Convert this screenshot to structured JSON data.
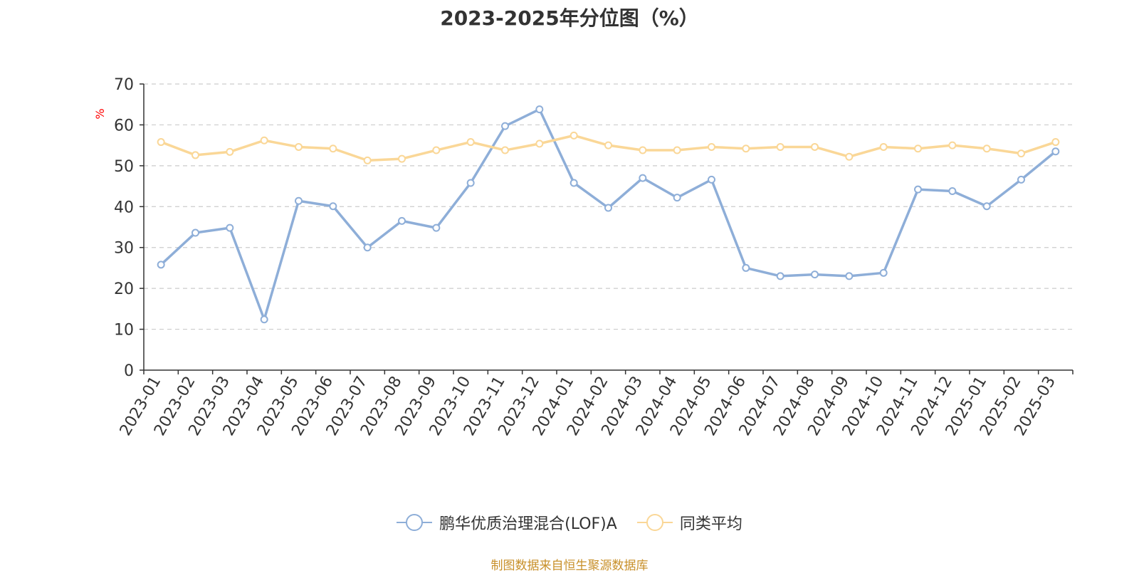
{
  "title": "2023-2025年分位图（%）",
  "source_note": "制图数据来自恒生聚源数据库",
  "colors": {
    "series_a": "#8eaed8",
    "series_b": "#fad797",
    "unit_label": "#ff0000",
    "source": "#c8902a"
  },
  "chart_data": {
    "type": "line",
    "title": "2023-2025年分位图（%）",
    "ylabel": "%",
    "ylim": [
      0,
      70
    ],
    "yticks": [
      0,
      10,
      20,
      30,
      40,
      50,
      60,
      70
    ],
    "grid": true,
    "legend_position": "bottom",
    "categories": [
      "2023-01",
      "2023-02",
      "2023-03",
      "2023-04",
      "2023-05",
      "2023-06",
      "2023-07",
      "2023-08",
      "2023-09",
      "2023-10",
      "2023-11",
      "2023-12",
      "2024-01",
      "2024-02",
      "2024-03",
      "2024-04",
      "2024-05",
      "2024-06",
      "2024-07",
      "2024-08",
      "2024-09",
      "2024-10",
      "2024-11",
      "2024-12",
      "2025-01",
      "2025-02",
      "2025-03"
    ],
    "series": [
      {
        "name": "鹏华优质治理混合(LOF)A",
        "values": [
          25.8,
          33.6,
          34.8,
          12.4,
          41.4,
          40.1,
          30.0,
          36.5,
          34.8,
          45.8,
          59.7,
          63.8,
          45.8,
          39.7,
          47.0,
          42.2,
          46.6,
          25.0,
          23.0,
          23.4,
          23.0,
          23.8,
          44.2,
          43.8,
          40.1,
          46.6,
          53.5
        ]
      },
      {
        "name": "同类平均",
        "values": [
          55.8,
          52.6,
          53.4,
          56.2,
          54.6,
          54.2,
          51.3,
          51.7,
          53.8,
          55.8,
          53.8,
          55.4,
          57.4,
          55.0,
          53.8,
          53.8,
          54.6,
          54.2,
          54.6,
          54.6,
          52.2,
          54.6,
          54.2,
          55.0,
          54.2,
          53.0,
          55.8
        ]
      }
    ]
  }
}
